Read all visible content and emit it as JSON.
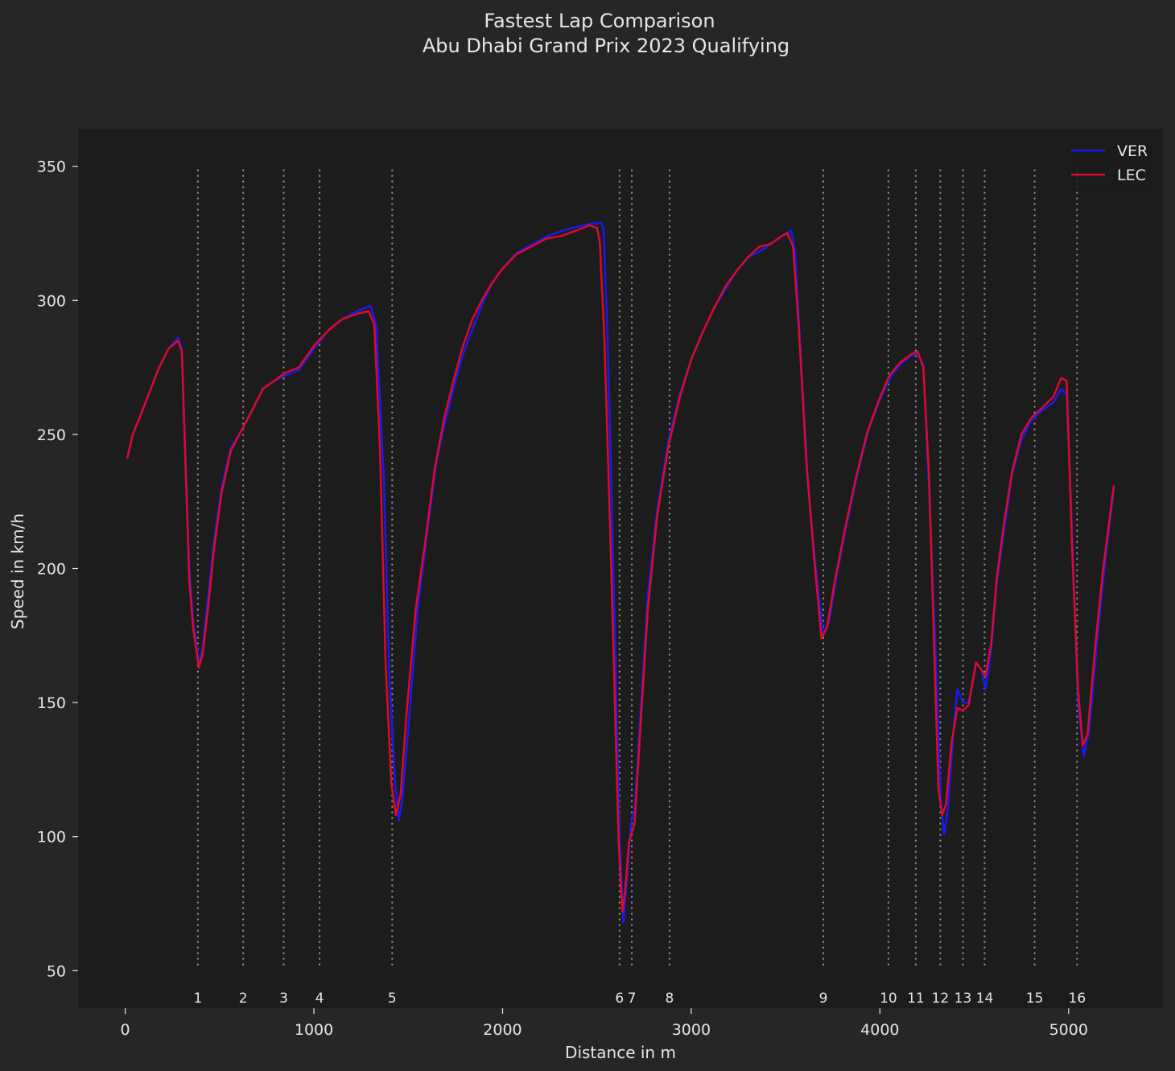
{
  "page": {
    "background": "#262626",
    "plot_background": "#1c1c1c"
  },
  "chart_data": {
    "type": "line",
    "title": "Fastest Lap Comparison",
    "subtitle": "Abu Dhabi Grand Prix 2023 Qualifying",
    "xlabel": "Distance in m",
    "ylabel": "Speed in km/h",
    "xlim": [
      -250,
      5500
    ],
    "ylim": [
      36,
      364
    ],
    "xticks": [
      0,
      1000,
      2000,
      3000,
      4000,
      5000
    ],
    "yticks": [
      50,
      100,
      150,
      200,
      250,
      300,
      350
    ],
    "grid": false,
    "legend": {
      "placement": "top-right",
      "entries": [
        "VER",
        "LEC"
      ]
    },
    "corners": {
      "line_color": "#9a9a9a",
      "line_style": "dotted",
      "y_range": [
        52,
        349
      ],
      "items": [
        {
          "label": "1",
          "x": 385
        },
        {
          "label": "2",
          "x": 625
        },
        {
          "label": "3",
          "x": 840
        },
        {
          "label": "4",
          "x": 1030
        },
        {
          "label": "5",
          "x": 1415
        },
        {
          "label": "6",
          "x": 2620
        },
        {
          "label": "7",
          "x": 2685
        },
        {
          "label": "8",
          "x": 2885
        },
        {
          "label": "9",
          "x": 3700
        },
        {
          "label": "10",
          "x": 4045
        },
        {
          "label": "11",
          "x": 4190
        },
        {
          "label": "12",
          "x": 4320
        },
        {
          "label": "13",
          "x": 4440
        },
        {
          "label": "14",
          "x": 4555
        },
        {
          "label": "15",
          "x": 4820
        },
        {
          "label": "16",
          "x": 5045
        }
      ]
    },
    "series": [
      {
        "name": "VER",
        "color": "#1a1aee",
        "points": [
          [
            10,
            241
          ],
          [
            40,
            250
          ],
          [
            80,
            257
          ],
          [
            130,
            266
          ],
          [
            180,
            275
          ],
          [
            230,
            282
          ],
          [
            280,
            286
          ],
          [
            300,
            282
          ],
          [
            320,
            240
          ],
          [
            340,
            200
          ],
          [
            360,
            180
          ],
          [
            390,
            165
          ],
          [
            410,
            170
          ],
          [
            440,
            190
          ],
          [
            470,
            210
          ],
          [
            510,
            230
          ],
          [
            560,
            245
          ],
          [
            620,
            252
          ],
          [
            680,
            260
          ],
          [
            730,
            267
          ],
          [
            790,
            270
          ],
          [
            850,
            272
          ],
          [
            920,
            274
          ],
          [
            1000,
            282
          ],
          [
            1080,
            289
          ],
          [
            1150,
            293
          ],
          [
            1230,
            296
          ],
          [
            1300,
            298
          ],
          [
            1330,
            291
          ],
          [
            1370,
            235
          ],
          [
            1400,
            160
          ],
          [
            1430,
            120
          ],
          [
            1450,
            106
          ],
          [
            1470,
            115
          ],
          [
            1500,
            140
          ],
          [
            1550,
            185
          ],
          [
            1600,
            213
          ],
          [
            1650,
            240
          ],
          [
            1700,
            256
          ],
          [
            1750,
            270
          ],
          [
            1800,
            282
          ],
          [
            1850,
            291
          ],
          [
            1900,
            300
          ],
          [
            1950,
            307
          ],
          [
            2000,
            312
          ],
          [
            2080,
            318
          ],
          [
            2160,
            321
          ],
          [
            2240,
            324
          ],
          [
            2320,
            326
          ],
          [
            2400,
            327.5
          ],
          [
            2460,
            328.5
          ],
          [
            2520,
            329
          ],
          [
            2535,
            327
          ],
          [
            2555,
            290
          ],
          [
            2580,
            220
          ],
          [
            2600,
            160
          ],
          [
            2620,
            100
          ],
          [
            2640,
            68
          ],
          [
            2660,
            85
          ],
          [
            2680,
            105
          ],
          [
            2700,
            110
          ],
          [
            2730,
            145
          ],
          [
            2770,
            190
          ],
          [
            2820,
            222
          ],
          [
            2880,
            248
          ],
          [
            2940,
            265
          ],
          [
            3000,
            278
          ],
          [
            3060,
            288
          ],
          [
            3120,
            297
          ],
          [
            3180,
            304
          ],
          [
            3240,
            311
          ],
          [
            3300,
            316
          ],
          [
            3380,
            319
          ],
          [
            3440,
            322
          ],
          [
            3500,
            325
          ],
          [
            3530,
            326
          ],
          [
            3550,
            318
          ],
          [
            3580,
            280
          ],
          [
            3620,
            230
          ],
          [
            3660,
            200
          ],
          [
            3700,
            176
          ],
          [
            3730,
            180
          ],
          [
            3770,
            197
          ],
          [
            3820,
            215
          ],
          [
            3880,
            235
          ],
          [
            3940,
            252
          ],
          [
            4000,
            263
          ],
          [
            4060,
            272
          ],
          [
            4120,
            277
          ],
          [
            4180,
            280
          ],
          [
            4200,
            280
          ],
          [
            4230,
            276
          ],
          [
            4260,
            230
          ],
          [
            4300,
            160
          ],
          [
            4320,
            115
          ],
          [
            4340,
            101
          ],
          [
            4360,
            110
          ],
          [
            4390,
            140
          ],
          [
            4410,
            155
          ],
          [
            4440,
            150
          ],
          [
            4470,
            150
          ],
          [
            4510,
            165
          ],
          [
            4540,
            162
          ],
          [
            4560,
            155
          ],
          [
            4590,
            170
          ],
          [
            4620,
            195
          ],
          [
            4660,
            215
          ],
          [
            4700,
            235
          ],
          [
            4750,
            248
          ],
          [
            4800,
            255
          ],
          [
            4860,
            259
          ],
          [
            4920,
            262
          ],
          [
            4960,
            267
          ],
          [
            4990,
            265
          ],
          [
            5020,
            210
          ],
          [
            5050,
            150
          ],
          [
            5080,
            130
          ],
          [
            5110,
            140
          ],
          [
            5150,
            172
          ],
          [
            5190,
            200
          ],
          [
            5240,
            230
          ]
        ]
      },
      {
        "name": "LEC",
        "color": "#dd0a2e",
        "points": [
          [
            10,
            241
          ],
          [
            40,
            250
          ],
          [
            80,
            257
          ],
          [
            130,
            266
          ],
          [
            180,
            275
          ],
          [
            230,
            282
          ],
          [
            280,
            285
          ],
          [
            300,
            281
          ],
          [
            320,
            238
          ],
          [
            340,
            195
          ],
          [
            360,
            178
          ],
          [
            390,
            163
          ],
          [
            410,
            168
          ],
          [
            440,
            186
          ],
          [
            470,
            207
          ],
          [
            510,
            228
          ],
          [
            560,
            244
          ],
          [
            620,
            252
          ],
          [
            680,
            260
          ],
          [
            730,
            267
          ],
          [
            790,
            270
          ],
          [
            850,
            273
          ],
          [
            920,
            275
          ],
          [
            1000,
            283
          ],
          [
            1080,
            289
          ],
          [
            1150,
            293
          ],
          [
            1230,
            295
          ],
          [
            1290,
            296
          ],
          [
            1320,
            291
          ],
          [
            1350,
            245
          ],
          [
            1380,
            165
          ],
          [
            1410,
            120
          ],
          [
            1435,
            108
          ],
          [
            1460,
            116
          ],
          [
            1490,
            145
          ],
          [
            1540,
            185
          ],
          [
            1590,
            210
          ],
          [
            1640,
            237
          ],
          [
            1690,
            256
          ],
          [
            1740,
            270
          ],
          [
            1790,
            283
          ],
          [
            1840,
            293
          ],
          [
            1890,
            300
          ],
          [
            1940,
            306
          ],
          [
            1990,
            311
          ],
          [
            2070,
            317
          ],
          [
            2150,
            320
          ],
          [
            2230,
            323
          ],
          [
            2310,
            324
          ],
          [
            2390,
            326
          ],
          [
            2460,
            328
          ],
          [
            2500,
            327
          ],
          [
            2515,
            322
          ],
          [
            2540,
            285
          ],
          [
            2570,
            215
          ],
          [
            2595,
            150
          ],
          [
            2615,
            98
          ],
          [
            2635,
            72
          ],
          [
            2650,
            80
          ],
          [
            2670,
            98
          ],
          [
            2700,
            105
          ],
          [
            2730,
            140
          ],
          [
            2770,
            185
          ],
          [
            2820,
            220
          ],
          [
            2880,
            246
          ],
          [
            2940,
            264
          ],
          [
            3000,
            278
          ],
          [
            3060,
            288
          ],
          [
            3120,
            297
          ],
          [
            3180,
            305
          ],
          [
            3240,
            311
          ],
          [
            3300,
            316
          ],
          [
            3360,
            320
          ],
          [
            3420,
            321
          ],
          [
            3480,
            324
          ],
          [
            3510,
            325
          ],
          [
            3540,
            320
          ],
          [
            3570,
            290
          ],
          [
            3610,
            240
          ],
          [
            3650,
            205
          ],
          [
            3690,
            174
          ],
          [
            3720,
            178
          ],
          [
            3760,
            195
          ],
          [
            3810,
            213
          ],
          [
            3870,
            233
          ],
          [
            3930,
            250
          ],
          [
            3990,
            262
          ],
          [
            4050,
            272
          ],
          [
            4110,
            277
          ],
          [
            4170,
            280
          ],
          [
            4200,
            281
          ],
          [
            4230,
            275
          ],
          [
            4260,
            235
          ],
          [
            4290,
            165
          ],
          [
            4310,
            118
          ],
          [
            4330,
            108
          ],
          [
            4350,
            112
          ],
          [
            4380,
            135
          ],
          [
            4410,
            148
          ],
          [
            4440,
            147
          ],
          [
            4470,
            149
          ],
          [
            4510,
            165
          ],
          [
            4540,
            162
          ],
          [
            4560,
            160
          ],
          [
            4590,
            172
          ],
          [
            4620,
            197
          ],
          [
            4660,
            218
          ],
          [
            4700,
            236
          ],
          [
            4750,
            250
          ],
          [
            4800,
            256
          ],
          [
            4860,
            260
          ],
          [
            4920,
            264
          ],
          [
            4960,
            271
          ],
          [
            4990,
            270
          ],
          [
            5020,
            205
          ],
          [
            5050,
            155
          ],
          [
            5075,
            134
          ],
          [
            5100,
            138
          ],
          [
            5140,
            170
          ],
          [
            5180,
            198
          ],
          [
            5240,
            231
          ]
        ]
      }
    ]
  }
}
